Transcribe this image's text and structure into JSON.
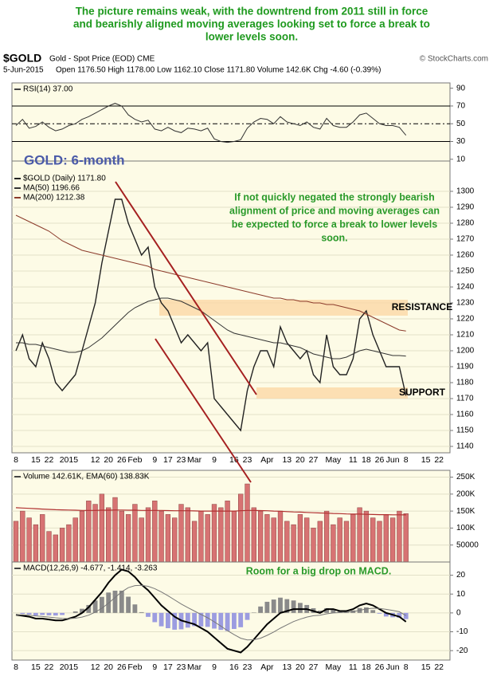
{
  "caption": [
    "The picture remains weak, with the downtrend from 2011 still in force",
    "and bearishly aligned moving averages looking set to force a break to",
    "lower levels soon."
  ],
  "header": {
    "symbol": "$GOLD",
    "description": "Gold - Spot Price (EOD) CME",
    "source": "© StockCharts.com",
    "date": "5-Jun-2015",
    "quote": "Open 1176.50  High 1178.00  Low 1162.10  Close 1171.80  Volume 142.6K  Chg -4.60 (-0.39%)"
  },
  "chart_data": [
    {
      "type": "line",
      "legend": "RSI(14) 37.00",
      "ylim": [
        8,
        96
      ],
      "yticks": [
        90,
        70,
        50,
        30,
        10
      ],
      "levels": [
        70,
        30
      ],
      "midline": 50,
      "series": [
        {
          "color": "#333333",
          "values": [
            48,
            55,
            45,
            47,
            52,
            46,
            42,
            44,
            48,
            50,
            55,
            58,
            62,
            66,
            70,
            73,
            70,
            60,
            55,
            52,
            54,
            44,
            42,
            46,
            42,
            40,
            45,
            44,
            42,
            45,
            33,
            30,
            29,
            30,
            32,
            45,
            52,
            56,
            55,
            50,
            58,
            52,
            50,
            48,
            52,
            46,
            44,
            56,
            48,
            46,
            46,
            52,
            60,
            62,
            56,
            50,
            48,
            48,
            46,
            37
          ]
        }
      ]
    },
    {
      "type": "line",
      "title": "GOLD: 6-month",
      "annotation": [
        "If not quickly negated the strongly bearish",
        "alignment of price and moving averages can",
        "be expected to force a break to lower levels",
        "soon."
      ],
      "ylim": [
        1136,
        1319
      ],
      "yticks": [
        1140,
        1150,
        1160,
        1170,
        1180,
        1190,
        1200,
        1210,
        1220,
        1230,
        1240,
        1250,
        1260,
        1270,
        1280,
        1290,
        1300
      ],
      "grid": true,
      "bands": [
        {
          "label": "RESISTANCE",
          "range": [
            1222,
            1232
          ]
        },
        {
          "label": "SUPPORT",
          "range": [
            1170,
            1177
          ]
        }
      ],
      "categories": [
        "8",
        null,
        null,
        "15",
        null,
        "22",
        null,
        null,
        "2015",
        null,
        null,
        null,
        "12",
        null,
        "20",
        null,
        "26",
        null,
        "Feb",
        null,
        null,
        "9",
        null,
        "17",
        null,
        "23",
        null,
        "Mar",
        null,
        null,
        "9",
        null,
        null,
        "16",
        null,
        "23",
        null,
        null,
        "Apr",
        null,
        null,
        "13",
        null,
        "20",
        null,
        "27",
        null,
        null,
        "May",
        null,
        null,
        "11",
        null,
        "18",
        null,
        "26",
        null,
        "Jun",
        null,
        "8",
        null,
        null,
        "15",
        null,
        "22",
        null
      ],
      "series": [
        {
          "name": "$GOLD (Daily) 1171.80",
          "color": "#222222",
          "width": 1.4,
          "values": [
            1200,
            1210,
            1195,
            1190,
            1205,
            1195,
            1180,
            1175,
            1180,
            1185,
            1200,
            1215,
            1230,
            1255,
            1275,
            1295,
            1295,
            1280,
            1270,
            1260,
            1265,
            1240,
            1230,
            1225,
            1215,
            1205,
            1210,
            1205,
            1200,
            1205,
            1170,
            1165,
            1160,
            1155,
            1150,
            1175,
            1190,
            1200,
            1200,
            1190,
            1215,
            1205,
            1200,
            1195,
            1200,
            1185,
            1180,
            1210,
            1190,
            1185,
            1185,
            1195,
            1220,
            1225,
            1210,
            1200,
            1190,
            1190,
            1190,
            1171.8,
            null,
            null,
            null,
            null,
            null,
            null
          ]
        },
        {
          "name": "MA(50) 1196.66",
          "color": "#333333",
          "width": 1,
          "values": [
            1205,
            1205,
            1204,
            1204,
            1203,
            1202,
            1201,
            1200,
            1199,
            1199,
            1200,
            1202,
            1205,
            1208,
            1212,
            1216,
            1220,
            1224,
            1227,
            1229,
            1231,
            1232,
            1233,
            1233,
            1232,
            1231,
            1229,
            1227,
            1225,
            1222,
            1219,
            1216,
            1213,
            1211,
            1210,
            1209,
            1208,
            1207,
            1206,
            1205,
            1205,
            1204,
            1203,
            1202,
            1200,
            1198,
            1197,
            1196,
            1195,
            1195,
            1196,
            1198,
            1200,
            1201,
            1200,
            1199,
            1198,
            1197,
            1197,
            1196.66,
            null,
            null,
            null,
            null,
            null,
            null
          ]
        },
        {
          "name": "MA(200) 1212.38",
          "color": "#8b3a2a",
          "width": 1,
          "values": [
            1285,
            1283,
            1281,
            1279,
            1277,
            1275,
            1272,
            1269,
            1267,
            1265,
            1263,
            1262,
            1261,
            1260,
            1259,
            1258,
            1257,
            1256,
            1255,
            1254,
            1253,
            1251,
            1250,
            1249,
            1248,
            1247,
            1246,
            1245,
            1244,
            1243,
            1242,
            1241,
            1240,
            1239,
            1238,
            1237,
            1236,
            1235,
            1234,
            1233,
            1233,
            1232,
            1232,
            1231,
            1231,
            1230,
            1230,
            1229,
            1229,
            1228,
            1227,
            1226,
            1225,
            1223,
            1221,
            1219,
            1217,
            1215,
            1213,
            1212.38,
            null,
            null,
            null,
            null,
            null,
            null
          ]
        }
      ]
    },
    {
      "type": "bar",
      "legend": "Volume 142.61K, EMA(60) 138.83K",
      "ylim": [
        0,
        270000
      ],
      "yticks": [
        {
          "value": 250000,
          "label": "250K"
        },
        {
          "value": 200000,
          "label": "200K"
        },
        {
          "value": 150000,
          "label": "150K"
        },
        {
          "value": 100000,
          "label": "100K"
        },
        50000
      ],
      "grid": true,
      "series": [
        {
          "color": "#d77373",
          "values": [
            120000,
            150000,
            130000,
            110000,
            140000,
            90000,
            80000,
            100000,
            110000,
            130000,
            150000,
            180000,
            170000,
            200000,
            160000,
            190000,
            150000,
            140000,
            170000,
            130000,
            160000,
            180000,
            150000,
            140000,
            130000,
            170000,
            160000,
            120000,
            150000,
            140000,
            170000,
            160000,
            180000,
            150000,
            200000,
            230000,
            160000,
            150000,
            140000,
            130000,
            150000,
            120000,
            110000,
            140000,
            130000,
            100000,
            120000,
            150000,
            110000,
            130000,
            120000,
            140000,
            160000,
            150000,
            130000,
            120000,
            140000,
            130000,
            150000,
            142610
          ]
        },
        {
          "type": "line",
          "color": "#b03030",
          "width": 1.2,
          "values": [
            160000,
            159000,
            158000,
            157000,
            156000,
            155000,
            154000,
            153500,
            153000,
            152500,
            152000,
            152000,
            152000,
            152500,
            152500,
            153000,
            153000,
            152500,
            152500,
            152000,
            152000,
            152000,
            152000,
            151500,
            151000,
            151000,
            151000,
            150500,
            150000,
            150000,
            150000,
            150000,
            150000,
            150000,
            151000,
            152000,
            152000,
            151500,
            151000,
            150000,
            149500,
            148500,
            147500,
            147000,
            146000,
            145000,
            144500,
            144000,
            143000,
            142500,
            141500,
            141000,
            141000,
            140500,
            140000,
            139500,
            139500,
            139000,
            139000,
            138830
          ]
        }
      ]
    },
    {
      "type": "line",
      "legend": "MACD(12,26,9) -4.677, -1.414, -3.263",
      "annotation": "Room for a big drop on MACD.",
      "ylim": [
        -25,
        27
      ],
      "yticks": [
        20,
        10,
        0,
        -10,
        -20
      ],
      "grid": true,
      "categories": [
        "8",
        null,
        null,
        "15",
        null,
        "22",
        null,
        null,
        "2015",
        null,
        null,
        null,
        "12",
        null,
        "20",
        null,
        "26",
        null,
        "Feb",
        null,
        null,
        "9",
        null,
        "17",
        null,
        "23",
        null,
        "Mar",
        null,
        null,
        "9",
        null,
        null,
        "16",
        null,
        "23",
        null,
        null,
        "Apr",
        null,
        null,
        "13",
        null,
        "20",
        null,
        "27",
        null,
        null,
        "May",
        null,
        null,
        "11",
        null,
        "18",
        null,
        "26",
        null,
        "Jun",
        null,
        "8",
        null,
        null,
        "15",
        null,
        "22",
        null
      ],
      "series": [
        {
          "type": "bar",
          "color": "#8a8a8a",
          "negative_color": "#9c9ce0",
          "values": [
            0,
            -0.5,
            -0.8,
            -1.4,
            -1.1,
            -1.3,
            -1.4,
            -1.1,
            0,
            0.8,
            2.2,
            4.2,
            6.6,
            8.5,
            10.8,
            11.8,
            11.8,
            8.6,
            4.5,
            0.4,
            -2.1,
            -4.9,
            -7.1,
            -8.1,
            -8.9,
            -8.7,
            -7.8,
            -7,
            -7.2,
            -7.4,
            -8.3,
            -9,
            -9.6,
            -8.5,
            -7.6,
            -3.7,
            0.2,
            3.4,
            5.9,
            7.1,
            8.1,
            7.3,
            6.6,
            5.3,
            4.2,
            2.5,
            1.2,
            2.5,
            2,
            0.8,
            0.6,
            1.3,
            2.6,
            2.9,
            1.5,
            -0.4,
            -1.9,
            -2.3,
            -2.6,
            -3.263,
            null,
            null,
            null,
            null,
            null,
            null
          ]
        },
        {
          "color": "#000000",
          "width": 2,
          "values": [
            -1,
            -1.5,
            -2,
            -3,
            -3,
            -3.5,
            -4,
            -4,
            -3,
            -2,
            0,
            3,
            7,
            11,
            16,
            20,
            23,
            22,
            19,
            15,
            12,
            8,
            4,
            1,
            -2,
            -4,
            -5,
            -6,
            -8,
            -10,
            -13,
            -16,
            -19,
            -20,
            -21,
            -18,
            -14,
            -10,
            -6,
            -3,
            0,
            1,
            2,
            2,
            2,
            1,
            0,
            2,
            2,
            1,
            1,
            2,
            4,
            5,
            4,
            2,
            0,
            -1,
            -2,
            -4.677,
            null,
            null,
            null,
            null,
            null,
            null
          ]
        },
        {
          "color": "#777777",
          "width": 1,
          "values": [
            -1,
            -1,
            -1.2,
            -1.6,
            -1.9,
            -2.2,
            -2.6,
            -2.9,
            -3,
            -2.8,
            -2.2,
            -1.2,
            0.4,
            2.5,
            5.2,
            8.2,
            11.2,
            13.4,
            14.5,
            14.6,
            14.1,
            12.9,
            11.1,
            9.1,
            6.9,
            4.7,
            2.8,
            1,
            -0.8,
            -2.6,
            -4.7,
            -7,
            -9.4,
            -11.5,
            -13.4,
            -14.3,
            -14.2,
            -13.4,
            -11.9,
            -10.1,
            -8.1,
            -6.3,
            -4.6,
            -3.3,
            -2.2,
            -1.5,
            -1.2,
            -0.5,
            0,
            0.2,
            0.4,
            0.7,
            1.4,
            2.1,
            2.5,
            2.4,
            1.9,
            1.3,
            0.6,
            -1.414,
            null,
            null,
            null,
            null,
            null,
            null
          ]
        }
      ]
    }
  ]
}
